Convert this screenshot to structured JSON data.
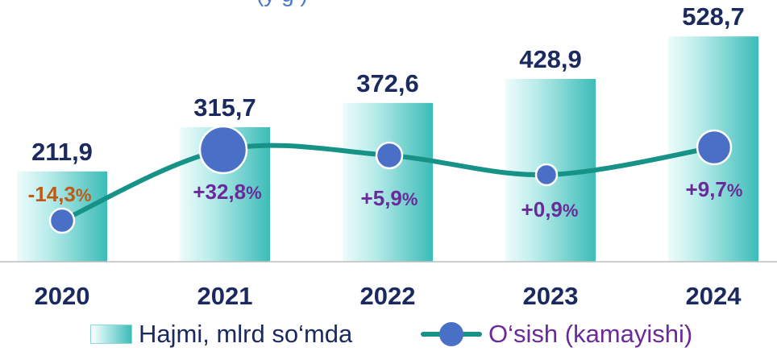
{
  "header": {
    "partial_title": "(y   g   )"
  },
  "chart_data": {
    "type": "bar",
    "categories": [
      "2020",
      "2021",
      "2022",
      "2023",
      "2024"
    ],
    "values": [
      211.9,
      315.7,
      372.6,
      428.9,
      528.7
    ],
    "value_labels": [
      "211,9",
      "315,7",
      "372,6",
      "428,9",
      "528,7"
    ],
    "growth": [
      -14.3,
      32.8,
      5.9,
      0.9,
      9.7
    ],
    "growth_labels": [
      "-14,3",
      "+32,8",
      "+5,9",
      "+0,9",
      "+9,7"
    ],
    "percent_sign": "%",
    "series": [
      {
        "name": "Hajmi, mlrd so‘mda",
        "type": "bar",
        "values": [
          211.9,
          315.7,
          372.6,
          428.9,
          528.7
        ]
      },
      {
        "name": "O‘sish (kamayishi)",
        "type": "line",
        "values": [
          -14.3,
          32.8,
          5.9,
          0.9,
          9.7
        ]
      }
    ],
    "colors": {
      "bar_dark": "#3cbcb8",
      "bar_light": "#eefbfb",
      "line": "#179287",
      "marker": "#4a6fc7",
      "value_text": "#1a2a5e",
      "negative_text": "#c05a14",
      "positive_text": "#6a2a9a",
      "axis": "#bdbdbd"
    },
    "legend_position": "bottom",
    "grid": false
  },
  "legend": {
    "bar_label": "Hajmi, mlrd so‘mda",
    "line_label": "O‘sish (kamayishi)"
  }
}
